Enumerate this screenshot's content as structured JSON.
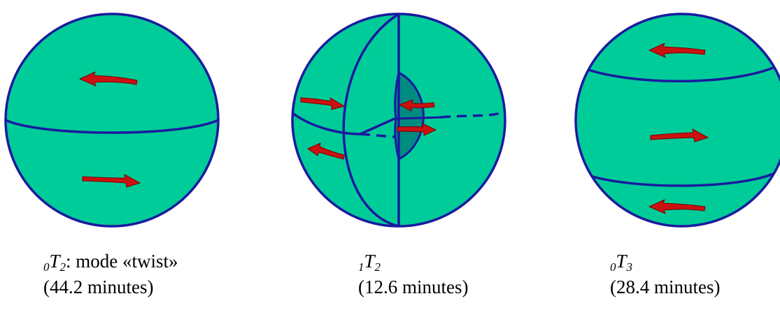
{
  "colors": {
    "sphere_fill": "#00CC99",
    "core_fill": "#008B80",
    "outline": "#1A1A9E",
    "arrow_fill": "#CC1111",
    "arrow_stroke": "#7A0000"
  },
  "icons": {
    "rotation_arrow": "curved-arrow-icon"
  },
  "modes": [
    {
      "order_subscript": "0",
      "symbol": "T",
      "degree_subscript": "2",
      "description": ": mode «twist»",
      "period": "(44.2 minutes)"
    },
    {
      "order_subscript": "1",
      "symbol": "T",
      "degree_subscript": "2",
      "description": "",
      "period": "(12.6 minutes)"
    },
    {
      "order_subscript": "0",
      "symbol": "T",
      "degree_subscript": "3",
      "description": "",
      "period": "(28.4 minutes)"
    }
  ]
}
